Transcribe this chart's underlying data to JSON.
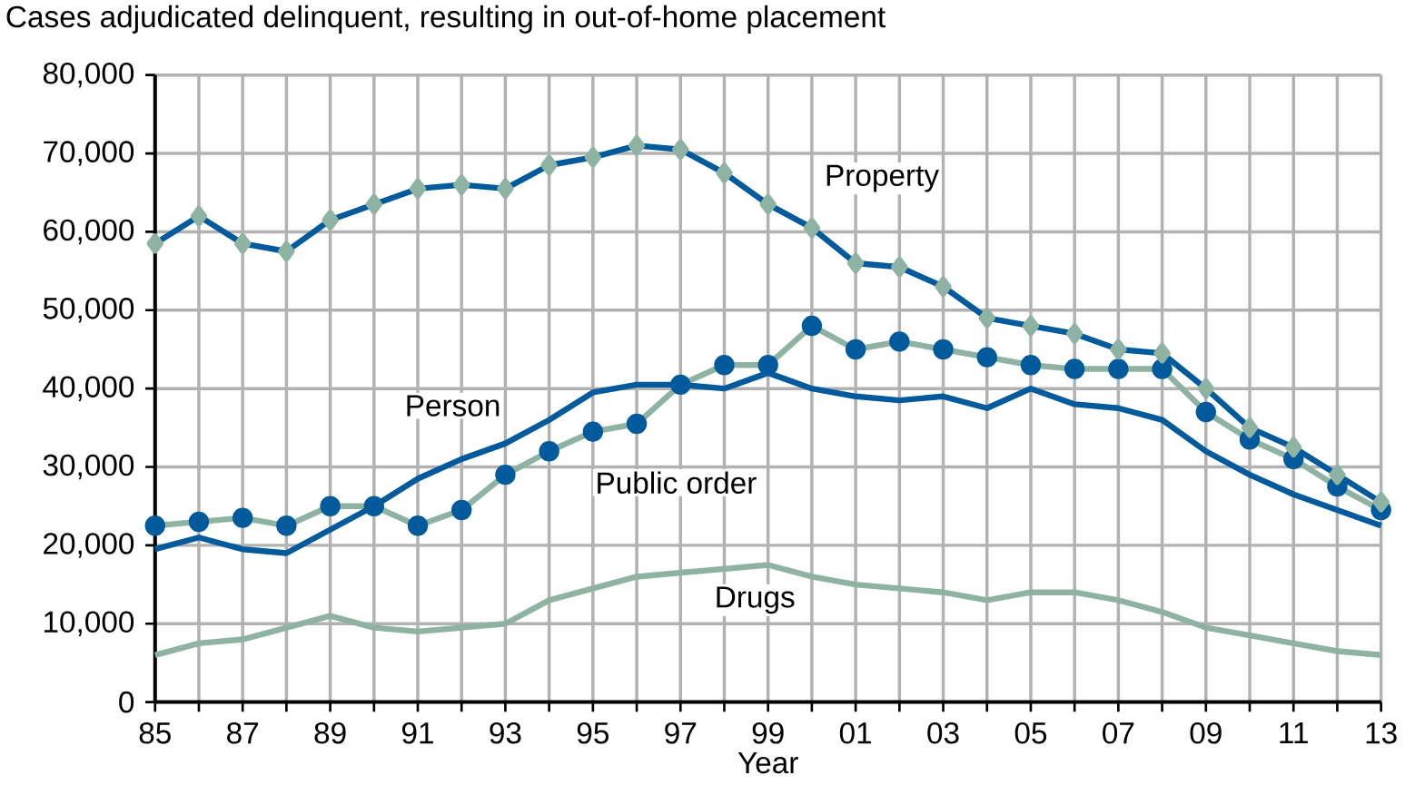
{
  "chart_data": {
    "type": "line",
    "title": "Cases adjudicated delinquent, resulting in out-of-home placement",
    "xlabel": "Year",
    "x": [
      1985,
      1986,
      1987,
      1988,
      1989,
      1990,
      1991,
      1992,
      1993,
      1994,
      1995,
      1996,
      1997,
      1998,
      1999,
      2000,
      2001,
      2002,
      2003,
      2004,
      2005,
      2006,
      2007,
      2008,
      2009,
      2010,
      2011,
      2012,
      2013
    ],
    "series": [
      {
        "name": "Property",
        "color": "#005a9c",
        "marker": "diamond",
        "values": [
          58500,
          62000,
          58500,
          57500,
          61500,
          63500,
          65500,
          66000,
          65500,
          68500,
          69500,
          71000,
          70500,
          67500,
          63500,
          60500,
          56000,
          55500,
          53000,
          49000,
          48000,
          47000,
          45000,
          44500,
          40000,
          35000,
          32500,
          29000,
          25500
        ]
      },
      {
        "name": "Person",
        "color": "#005a9c",
        "marker": "none",
        "values": [
          19500,
          21000,
          19500,
          19000,
          22000,
          25000,
          28500,
          31000,
          33000,
          36000,
          39500,
          40500,
          40500,
          40000,
          42000,
          40000,
          39000,
          38500,
          39000,
          37500,
          40000,
          38000,
          37500,
          36000,
          32000,
          29000,
          26500,
          24500,
          22500
        ]
      },
      {
        "name": "Public order",
        "color": "#8fb3a3",
        "marker": "circle",
        "values": [
          22500,
          23000,
          23500,
          22500,
          25000,
          25000,
          22500,
          24500,
          29000,
          32000,
          34500,
          35500,
          40500,
          43000,
          43000,
          48000,
          45000,
          46000,
          45000,
          44000,
          43000,
          42500,
          42500,
          42500,
          37000,
          33500,
          31000,
          27500,
          24500
        ]
      },
      {
        "name": "Drugs",
        "color": "#8fb3a3",
        "marker": "none",
        "values": [
          6000,
          7500,
          8000,
          9500,
          11000,
          9500,
          9000,
          9500,
          10000,
          13000,
          14500,
          16000,
          16500,
          17000,
          17500,
          16000,
          15000,
          14500,
          14000,
          13000,
          14000,
          14000,
          13000,
          11500,
          9500,
          8500,
          7500,
          6500,
          6000
        ]
      }
    ],
    "xlim": [
      1985,
      2013
    ],
    "xticks": [
      {
        "value": 1985,
        "label": "85"
      },
      {
        "value": 1986,
        "label": null
      },
      {
        "value": 1987,
        "label": "87"
      },
      {
        "value": 1988,
        "label": null
      },
      {
        "value": 1989,
        "label": "89"
      },
      {
        "value": 1990,
        "label": null
      },
      {
        "value": 1991,
        "label": "91"
      },
      {
        "value": 1992,
        "label": null
      },
      {
        "value": 1993,
        "label": "93"
      },
      {
        "value": 1994,
        "label": null
      },
      {
        "value": 1995,
        "label": "95"
      },
      {
        "value": 1996,
        "label": null
      },
      {
        "value": 1997,
        "label": "97"
      },
      {
        "value": 1998,
        "label": null
      },
      {
        "value": 1999,
        "label": "99"
      },
      {
        "value": 2000,
        "label": null
      },
      {
        "value": 2001,
        "label": "01"
      },
      {
        "value": 2002,
        "label": null
      },
      {
        "value": 2003,
        "label": "03"
      },
      {
        "value": 2004,
        "label": null
      },
      {
        "value": 2005,
        "label": "05"
      },
      {
        "value": 2006,
        "label": null
      },
      {
        "value": 2007,
        "label": "07"
      },
      {
        "value": 2008,
        "label": null
      },
      {
        "value": 2009,
        "label": "09"
      },
      {
        "value": 2010,
        "label": null
      },
      {
        "value": 2011,
        "label": "11"
      },
      {
        "value": 2012,
        "label": null
      },
      {
        "value": 2013,
        "label": "13"
      }
    ],
    "ylim": [
      0,
      80000
    ],
    "yticks": [
      0,
      {
        "value": 10000,
        "label": "10,000"
      },
      {
        "value": 20000,
        "label": "20,000"
      },
      {
        "value": 30000,
        "label": "30,000"
      },
      {
        "value": 40000,
        "label": "40,000"
      },
      {
        "value": 50000,
        "label": "50,000"
      },
      {
        "value": 60000,
        "label": "60,000"
      },
      {
        "value": 70000,
        "label": "70,000"
      },
      {
        "value": 80000,
        "label": "80,000"
      }
    ],
    "grid": true,
    "legend": false,
    "line_style": "solid"
  }
}
